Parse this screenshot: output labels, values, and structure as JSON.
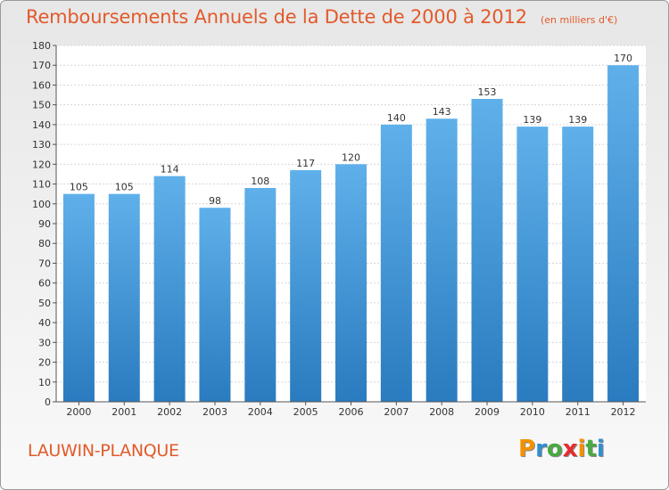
{
  "header": {
    "title": "Remboursements Annuels de la Dette de 2000 à 2012",
    "subtitle": "(en milliers d'€)"
  },
  "footer": {
    "commune": "LAUWIN-PLANQUE",
    "brand_letters": [
      "P",
      "r",
      "o",
      "x",
      "i",
      "t",
      "i"
    ],
    "brand_colors": [
      "#f39200",
      "#2f8fd0",
      "#49a942",
      "#e52d2d",
      "#f39200",
      "#49a942",
      "#2f8fd0"
    ]
  },
  "chart_data": {
    "type": "bar",
    "categories": [
      "2000",
      "2001",
      "2002",
      "2003",
      "2004",
      "2005",
      "2006",
      "2007",
      "2008",
      "2009",
      "2010",
      "2011",
      "2012"
    ],
    "values": [
      105,
      105,
      114,
      98,
      108,
      117,
      120,
      140,
      143,
      153,
      139,
      139,
      170
    ],
    "data_labels": [
      "105",
      "105",
      "114",
      "98",
      "108",
      "117",
      "120",
      "140",
      "143",
      "153",
      "139",
      "139",
      "170"
    ],
    "title": "Remboursements Annuels de la Dette de 2000 à 2012",
    "xlabel": "",
    "ylabel": "",
    "ylim": [
      0,
      180
    ],
    "yticks": [
      0,
      10,
      20,
      30,
      40,
      50,
      60,
      70,
      80,
      90,
      100,
      110,
      120,
      130,
      140,
      150,
      160,
      170,
      180
    ],
    "grid": true,
    "bar_color_top": "#5fb0ea",
    "bar_color_bottom": "#2a7bbf"
  }
}
